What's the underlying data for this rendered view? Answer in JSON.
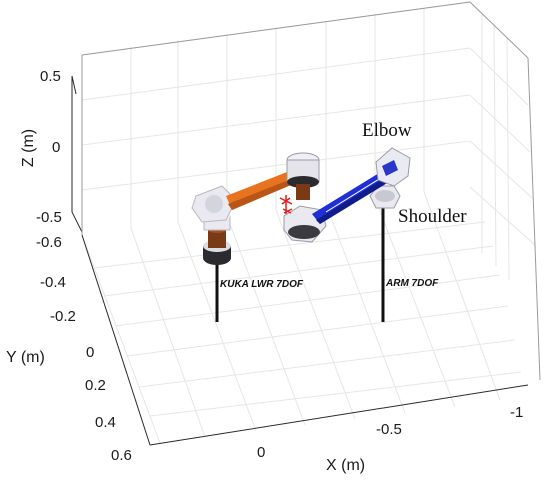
{
  "axes": {
    "z": {
      "title": "Z (m)",
      "ticks": [
        "0.5",
        "0",
        "-0.5"
      ]
    },
    "y": {
      "title": "Y (m)",
      "ticks": [
        "-0.6",
        "-0.4",
        "-0.2",
        "0",
        "0.2",
        "0.4",
        "0.6"
      ]
    },
    "x": {
      "title": "X (m)",
      "ticks": [
        "0",
        "-0.5",
        "-1"
      ]
    }
  },
  "robots": {
    "left": {
      "label": "KUKA LWR 7DOF",
      "link_color": "#e8731e"
    },
    "right": {
      "label": "ARM 7DOF",
      "link_color": "#1f2fd6"
    }
  },
  "annotations": {
    "elbow": "Elbow",
    "shoulder": "Shoulder"
  },
  "colors": {
    "joint_body": "#e9e9ef",
    "joint_dark": "#2b2b2f",
    "post": "#111111",
    "marker": "#e0201a"
  }
}
